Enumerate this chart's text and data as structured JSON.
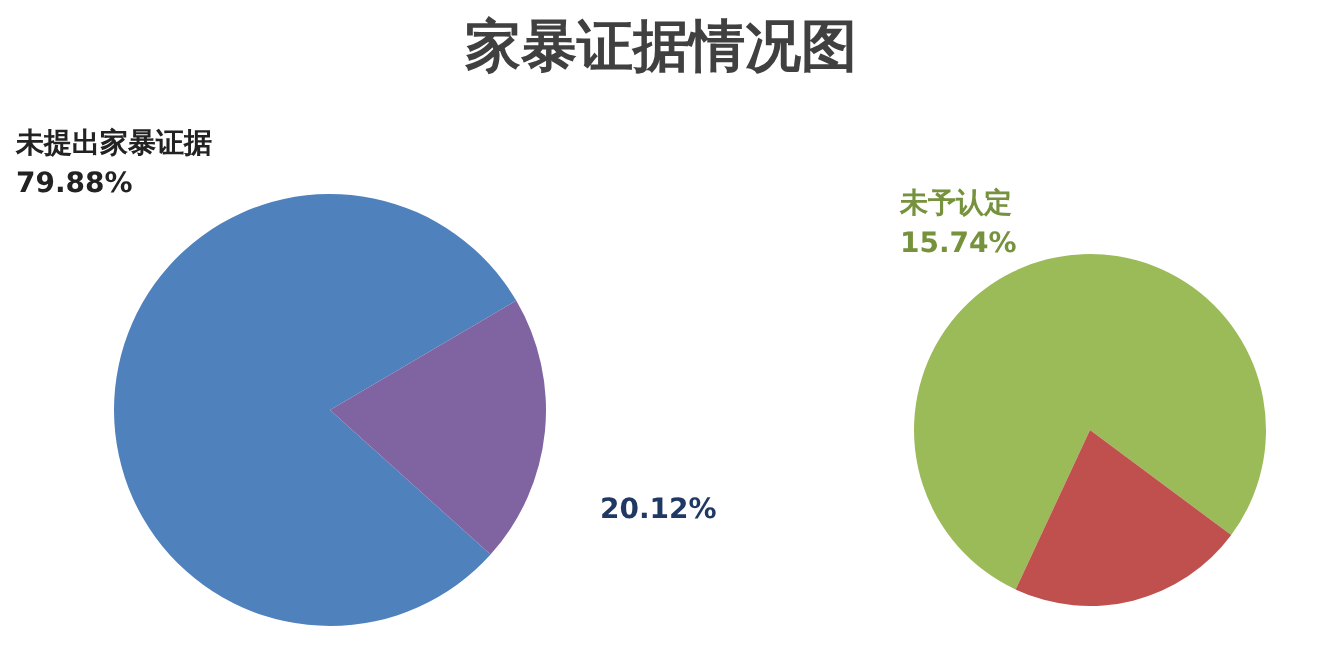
{
  "chart_data": [
    {
      "type": "pie",
      "title": "家暴证据情况图",
      "categories": [
        "未提出家暴证据",
        null
      ],
      "values": [
        79.88,
        20.12
      ],
      "colors": [
        "#4f81bd",
        "#8064a2"
      ],
      "value_labels": [
        "79.88%",
        "20.12%"
      ]
    },
    {
      "type": "pie",
      "categories": [
        "未予认定",
        null
      ],
      "values": [
        15.74,
        4.38
      ],
      "colors": [
        "#9bbb59",
        "#c0504d"
      ],
      "value_labels": [
        "15.74%",
        null
      ]
    }
  ]
}
